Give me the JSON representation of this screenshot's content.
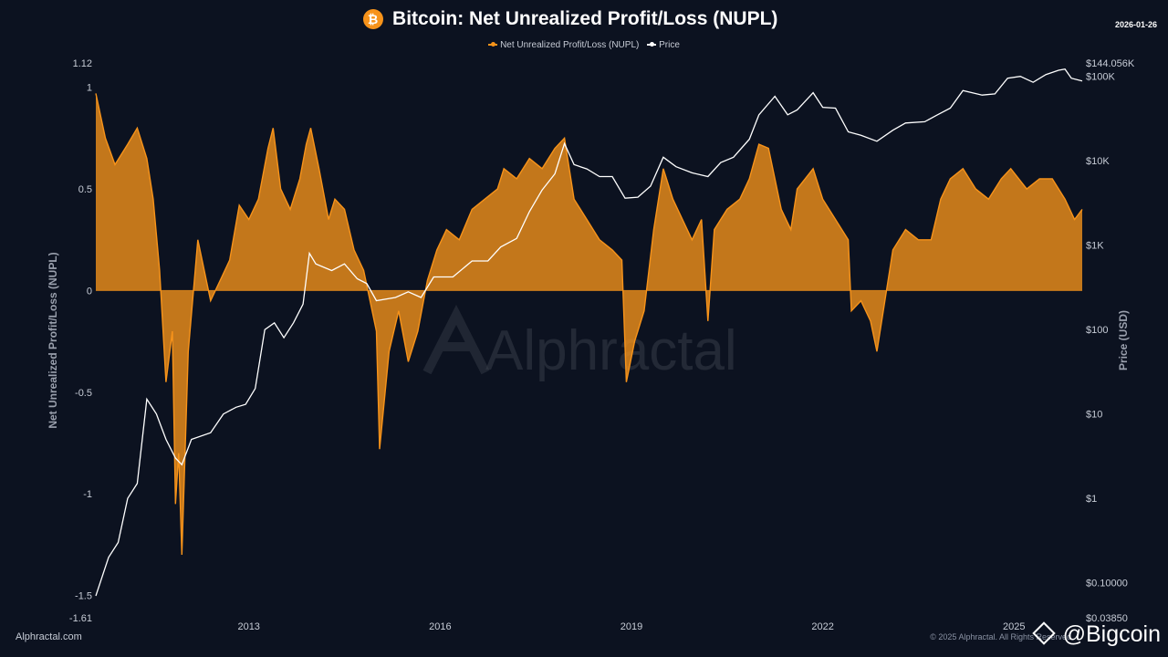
{
  "header": {
    "title": "Bitcoin: Net Unrealized Profit/Loss (NUPL)",
    "date": "2026-01-26",
    "logo_glyph": "₿",
    "logo_color": "#f7931a"
  },
  "legend": {
    "items": [
      {
        "label": "Net Unrealized Profit/Loss (NUPL)",
        "color": "#f7931a"
      },
      {
        "label": "Price",
        "color": "#ffffff"
      }
    ]
  },
  "watermark": "Alphractal",
  "footer": {
    "left": "Alphractal.com",
    "right": "© 2025 Alphractal. All Rights Reserved",
    "badge": "@Bigcoin"
  },
  "chart_data": {
    "type": "area",
    "x_axis": {
      "ticks": [
        "2013",
        "2016",
        "2019",
        "2022",
        "2025"
      ],
      "range": [
        2010.6,
        2026.07
      ]
    },
    "y_left": {
      "label": "Net Unrealized Profit/Loss (NUPL)",
      "ticks": [
        "1.12",
        "1",
        "0.5",
        "0",
        "-0.5",
        "-1",
        "-1.5",
        "-1.61"
      ],
      "range": [
        -1.61,
        1.12
      ]
    },
    "y_right": {
      "label": "Price (USD)",
      "scale": "log",
      "ticks": [
        "$144.056K",
        "$100K",
        "$10K",
        "$1K",
        "$100",
        "$10",
        "$1",
        "$0.10000",
        "$0.03850"
      ],
      "range": [
        0.0385,
        144056
      ]
    },
    "colors": {
      "nupl": "#f7931a",
      "price": "#ffffff"
    },
    "series": [
      {
        "name": "Net Unrealized Profit/Loss (NUPL)",
        "points": [
          [
            2010.6,
            0.97
          ],
          [
            2010.75,
            0.75
          ],
          [
            2010.9,
            0.62
          ],
          [
            2011.1,
            0.72
          ],
          [
            2011.25,
            0.8
          ],
          [
            2011.4,
            0.65
          ],
          [
            2011.5,
            0.45
          ],
          [
            2011.6,
            0.1
          ],
          [
            2011.7,
            -0.45
          ],
          [
            2011.8,
            -0.2
          ],
          [
            2011.85,
            -1.05
          ],
          [
            2011.9,
            -0.8
          ],
          [
            2011.95,
            -1.3
          ],
          [
            2012.05,
            -0.3
          ],
          [
            2012.2,
            0.25
          ],
          [
            2012.3,
            0.1
          ],
          [
            2012.4,
            -0.05
          ],
          [
            2012.55,
            0.05
          ],
          [
            2012.7,
            0.15
          ],
          [
            2012.85,
            0.42
          ],
          [
            2013.0,
            0.35
          ],
          [
            2013.15,
            0.45
          ],
          [
            2013.3,
            0.7
          ],
          [
            2013.38,
            0.8
          ],
          [
            2013.5,
            0.5
          ],
          [
            2013.65,
            0.4
          ],
          [
            2013.8,
            0.55
          ],
          [
            2013.9,
            0.72
          ],
          [
            2013.97,
            0.8
          ],
          [
            2014.1,
            0.6
          ],
          [
            2014.25,
            0.35
          ],
          [
            2014.35,
            0.45
          ],
          [
            2014.5,
            0.4
          ],
          [
            2014.65,
            0.2
          ],
          [
            2014.8,
            0.1
          ],
          [
            2015.0,
            -0.2
          ],
          [
            2015.05,
            -0.78
          ],
          [
            2015.2,
            -0.3
          ],
          [
            2015.35,
            -0.1
          ],
          [
            2015.5,
            -0.35
          ],
          [
            2015.65,
            -0.2
          ],
          [
            2015.8,
            0.05
          ],
          [
            2015.95,
            0.2
          ],
          [
            2016.1,
            0.3
          ],
          [
            2016.3,
            0.25
          ],
          [
            2016.5,
            0.4
          ],
          [
            2016.7,
            0.45
          ],
          [
            2016.9,
            0.5
          ],
          [
            2017.0,
            0.6
          ],
          [
            2017.2,
            0.55
          ],
          [
            2017.4,
            0.65
          ],
          [
            2017.6,
            0.6
          ],
          [
            2017.8,
            0.7
          ],
          [
            2017.95,
            0.75
          ],
          [
            2018.1,
            0.45
          ],
          [
            2018.3,
            0.35
          ],
          [
            2018.5,
            0.25
          ],
          [
            2018.7,
            0.2
          ],
          [
            2018.85,
            0.15
          ],
          [
            2018.92,
            -0.45
          ],
          [
            2019.05,
            -0.25
          ],
          [
            2019.2,
            -0.1
          ],
          [
            2019.35,
            0.3
          ],
          [
            2019.5,
            0.6
          ],
          [
            2019.65,
            0.45
          ],
          [
            2019.8,
            0.35
          ],
          [
            2019.95,
            0.25
          ],
          [
            2020.1,
            0.35
          ],
          [
            2020.2,
            -0.15
          ],
          [
            2020.3,
            0.3
          ],
          [
            2020.5,
            0.4
          ],
          [
            2020.7,
            0.45
          ],
          [
            2020.85,
            0.55
          ],
          [
            2021.0,
            0.72
          ],
          [
            2021.15,
            0.7
          ],
          [
            2021.35,
            0.4
          ],
          [
            2021.5,
            0.3
          ],
          [
            2021.6,
            0.5
          ],
          [
            2021.85,
            0.6
          ],
          [
            2022.0,
            0.45
          ],
          [
            2022.2,
            0.35
          ],
          [
            2022.4,
            0.25
          ],
          [
            2022.45,
            -0.1
          ],
          [
            2022.6,
            -0.05
          ],
          [
            2022.75,
            -0.15
          ],
          [
            2022.85,
            -0.3
          ],
          [
            2022.95,
            -0.1
          ],
          [
            2023.1,
            0.2
          ],
          [
            2023.3,
            0.3
          ],
          [
            2023.5,
            0.25
          ],
          [
            2023.7,
            0.25
          ],
          [
            2023.85,
            0.45
          ],
          [
            2024.0,
            0.55
          ],
          [
            2024.2,
            0.6
          ],
          [
            2024.4,
            0.5
          ],
          [
            2024.6,
            0.45
          ],
          [
            2024.8,
            0.55
          ],
          [
            2024.95,
            0.6
          ],
          [
            2025.2,
            0.5
          ],
          [
            2025.4,
            0.55
          ],
          [
            2025.6,
            0.55
          ],
          [
            2025.8,
            0.45
          ],
          [
            2025.95,
            0.35
          ],
          [
            2026.07,
            0.4
          ]
        ]
      },
      {
        "name": "Price",
        "points": [
          [
            2010.6,
            0.07
          ],
          [
            2010.8,
            0.2
          ],
          [
            2010.95,
            0.3
          ],
          [
            2011.1,
            1
          ],
          [
            2011.25,
            1.5
          ],
          [
            2011.4,
            15
          ],
          [
            2011.55,
            10
          ],
          [
            2011.7,
            5
          ],
          [
            2011.85,
            3
          ],
          [
            2011.95,
            2.5
          ],
          [
            2012.1,
            5
          ],
          [
            2012.4,
            6
          ],
          [
            2012.6,
            10
          ],
          [
            2012.8,
            12
          ],
          [
            2012.95,
            13
          ],
          [
            2013.1,
            20
          ],
          [
            2013.25,
            100
          ],
          [
            2013.4,
            120
          ],
          [
            2013.55,
            80
          ],
          [
            2013.7,
            120
          ],
          [
            2013.85,
            200
          ],
          [
            2013.95,
            800
          ],
          [
            2014.05,
            600
          ],
          [
            2014.3,
            500
          ],
          [
            2014.5,
            600
          ],
          [
            2014.7,
            400
          ],
          [
            2014.85,
            350
          ],
          [
            2015.0,
            220
          ],
          [
            2015.3,
            240
          ],
          [
            2015.5,
            280
          ],
          [
            2015.7,
            240
          ],
          [
            2015.9,
            420
          ],
          [
            2016.2,
            420
          ],
          [
            2016.5,
            650
          ],
          [
            2016.75,
            650
          ],
          [
            2016.95,
            950
          ],
          [
            2017.2,
            1200
          ],
          [
            2017.4,
            2500
          ],
          [
            2017.6,
            4500
          ],
          [
            2017.8,
            7000
          ],
          [
            2017.95,
            16000
          ],
          [
            2018.1,
            9000
          ],
          [
            2018.3,
            8000
          ],
          [
            2018.5,
            6500
          ],
          [
            2018.7,
            6500
          ],
          [
            2018.9,
            3600
          ],
          [
            2019.1,
            3700
          ],
          [
            2019.3,
            5000
          ],
          [
            2019.5,
            11000
          ],
          [
            2019.7,
            8500
          ],
          [
            2019.95,
            7200
          ],
          [
            2020.2,
            6500
          ],
          [
            2020.4,
            9500
          ],
          [
            2020.6,
            11000
          ],
          [
            2020.85,
            18000
          ],
          [
            2021.0,
            35000
          ],
          [
            2021.25,
            58000
          ],
          [
            2021.45,
            35000
          ],
          [
            2021.6,
            40000
          ],
          [
            2021.85,
            64000
          ],
          [
            2022.0,
            43000
          ],
          [
            2022.2,
            42000
          ],
          [
            2022.4,
            22000
          ],
          [
            2022.6,
            20000
          ],
          [
            2022.85,
            17000
          ],
          [
            2023.1,
            23000
          ],
          [
            2023.3,
            28000
          ],
          [
            2023.6,
            29000
          ],
          [
            2023.8,
            35000
          ],
          [
            2024.0,
            42000
          ],
          [
            2024.2,
            68000
          ],
          [
            2024.5,
            60000
          ],
          [
            2024.7,
            62000
          ],
          [
            2024.9,
            95000
          ],
          [
            2025.1,
            100000
          ],
          [
            2025.3,
            85000
          ],
          [
            2025.5,
            105000
          ],
          [
            2025.7,
            118000
          ],
          [
            2025.8,
            122000
          ],
          [
            2025.9,
            95000
          ],
          [
            2026.07,
            88000
          ]
        ]
      }
    ]
  }
}
